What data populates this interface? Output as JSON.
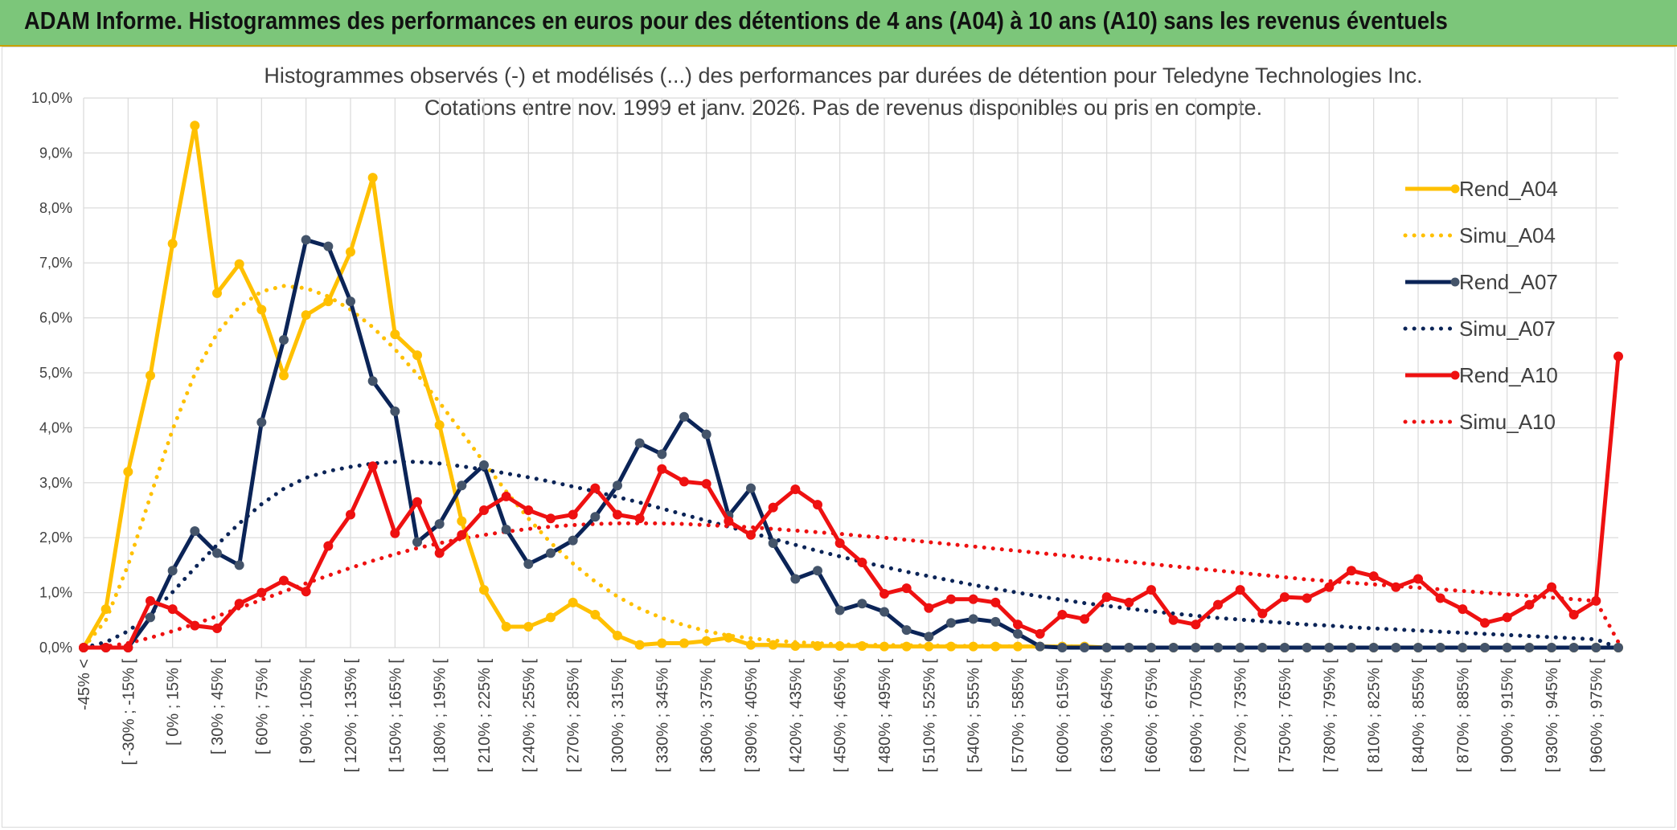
{
  "banner": {
    "title": "ADAM Informe. Histogrammes des performances en euros pour des détentions de 4 ans (A04) à 10 ans (A10) sans les revenus éventuels"
  },
  "chart_data": {
    "type": "line",
    "title": "Histogrammes observés (-) et modélisés (...) des performances par durées de détention pour Teledyne Technologies Inc.",
    "subtitle": "Cotations entre nov. 1999 et janv. 2026. Pas de revenus disponibles ou pris en compte.",
    "xlabel": "",
    "ylabel": "",
    "ylim": [
      0,
      10
    ],
    "y_ticks": [
      "0,0%",
      "1,0%",
      "2,0%",
      "3,0%",
      "4,0%",
      "5,0%",
      "6,0%",
      "7,0%",
      "8,0%",
      "9,0%",
      "10,0%"
    ],
    "x_tick_labels": [
      "-45% <",
      "[ -30% ; -15% [",
      "[ 0% ; 15% [",
      "[ 30% ; 45% [",
      "[ 60% ; 75% [",
      "[ 90% ; 105% [",
      "[ 120% ; 135% [",
      "[ 150% ; 165% [",
      "[ 180% ; 195% [",
      "[ 210% ; 225% [",
      "[ 240% ; 255% [",
      "[ 270% ; 285% [",
      "[ 300% ; 315% [",
      "[ 330% ; 345% [",
      "[ 360% ; 375% [",
      "[ 390% ; 405% [",
      "[ 420% ; 435% [",
      "[ 450% ; 465% [",
      "[ 480% ; 495% [",
      "[ 510% ; 525% [",
      "[ 540% ; 555% [",
      "[ 570% ; 585% [",
      "[ 600% ; 615% [",
      "[ 630% ; 645% [",
      "[ 660% ; 675% [",
      "[ 690% ; 705% [",
      "[ 720% ; 735% [",
      "[ 750% ; 765% [",
      "[ 780% ; 795% [",
      "[ 810% ; 825% [",
      "[ 840% ; 855% [",
      "[ 870% ; 885% [",
      "[ 900% ; 915% [",
      "[ 930% ; 945% [",
      "[ 960% ; 975% ["
    ],
    "grid": true,
    "legend_position": "right",
    "n_points": 70,
    "series": [
      {
        "name": "Rend_A04",
        "style": "solid",
        "marker": true,
        "color": "#ffc000",
        "values": [
          0,
          0.7,
          3.2,
          4.95,
          7.35,
          9.5,
          6.45,
          6.98,
          6.15,
          4.95,
          6.05,
          6.3,
          7.2,
          8.55,
          5.7,
          5.32,
          4.05,
          2.3,
          1.05,
          0.38,
          0.38,
          0.55,
          0.82,
          0.6,
          0.22,
          0.05,
          0.08,
          0.08,
          0.12,
          0.18,
          0.05,
          0.05,
          0.03,
          0.03,
          0.03,
          0.03,
          0.02,
          0.02,
          0.02,
          0.02,
          0.02,
          0.02,
          0.02,
          0.02,
          0.02,
          0.02,
          0,
          0,
          0,
          0,
          0,
          0,
          0,
          0,
          0,
          0,
          0,
          0,
          0,
          0,
          0,
          0,
          0,
          0,
          0,
          0,
          0,
          0,
          0,
          0
        ]
      },
      {
        "name": "Simu_A04",
        "style": "dotted",
        "marker": false,
        "color": "#ffc000",
        "values": [
          0,
          0.5,
          1.5,
          2.75,
          3.97,
          4.98,
          5.72,
          6.2,
          6.48,
          6.58,
          6.54,
          6.39,
          6.15,
          5.83,
          5.43,
          4.97,
          4.46,
          3.92,
          3.37,
          2.84,
          2.35,
          1.91,
          1.53,
          1.2,
          0.93,
          0.71,
          0.54,
          0.41,
          0.3,
          0.22,
          0.17,
          0.13,
          0.1,
          0.08,
          0.06,
          0.05,
          0.05,
          0.04,
          0.04,
          0.03,
          0.03,
          0.03,
          0.02,
          0.02,
          0.02,
          0.02,
          0,
          0,
          0,
          0,
          0,
          0,
          0,
          0,
          0,
          0,
          0,
          0,
          0,
          0,
          0,
          0,
          0,
          0,
          0,
          0,
          0,
          0,
          0,
          0
        ]
      },
      {
        "name": "Rend_A07",
        "style": "solid",
        "marker": true,
        "color": "#0b2457",
        "values": [
          0,
          0,
          0,
          0.55,
          1.4,
          2.12,
          1.72,
          1.5,
          4.1,
          5.6,
          7.42,
          7.3,
          6.3,
          4.85,
          4.3,
          1.92,
          2.25,
          2.95,
          3.32,
          2.15,
          1.52,
          1.72,
          1.95,
          2.38,
          2.95,
          3.72,
          3.52,
          4.2,
          3.88,
          2.4,
          2.9,
          1.9,
          1.25,
          1.4,
          0.68,
          0.8,
          0.65,
          0.32,
          0.2,
          0.45,
          0.52,
          0.47,
          0.25,
          0.02,
          0,
          0,
          0,
          0,
          0,
          0,
          0,
          0,
          0,
          0,
          0,
          0,
          0,
          0,
          0,
          0,
          0,
          0,
          0,
          0,
          0,
          0,
          0,
          0,
          0,
          0
        ]
      },
      {
        "name": "Simu_A07",
        "style": "dotted",
        "marker": false,
        "color": "#0b2457",
        "values": [
          0,
          0.1,
          0.3,
          0.6,
          1.01,
          1.45,
          1.87,
          2.26,
          2.61,
          2.89,
          3.09,
          3.21,
          3.29,
          3.35,
          3.38,
          3.38,
          3.35,
          3.3,
          3.24,
          3.17,
          3.1,
          3.02,
          2.93,
          2.84,
          2.74,
          2.64,
          2.53,
          2.42,
          2.31,
          2.2,
          2.09,
          1.98,
          1.87,
          1.76,
          1.66,
          1.56,
          1.47,
          1.38,
          1.3,
          1.22,
          1.14,
          1.07,
          1.0,
          0.93,
          0.87,
          0.81,
          0.76,
          0.71,
          0.66,
          0.62,
          0.58,
          0.54,
          0.51,
          0.48,
          0.45,
          0.42,
          0.4,
          0.37,
          0.35,
          0.33,
          0.31,
          0.29,
          0.27,
          0.25,
          0.23,
          0.21,
          0.19,
          0.17,
          0.15,
          0
        ]
      },
      {
        "name": "Rend_A10",
        "style": "solid",
        "marker": true,
        "color": "#ee1111",
        "values": [
          0,
          0,
          0,
          0.85,
          0.7,
          0.4,
          0.35,
          0.8,
          1.0,
          1.22,
          1.02,
          1.85,
          2.42,
          3.3,
          2.08,
          2.65,
          1.72,
          2.05,
          2.5,
          2.75,
          2.5,
          2.35,
          2.42,
          2.9,
          2.42,
          2.35,
          3.25,
          3.02,
          2.98,
          2.3,
          2.05,
          2.55,
          2.88,
          2.6,
          1.9,
          1.55,
          0.98,
          1.08,
          0.72,
          0.88,
          0.88,
          0.82,
          0.42,
          0.25,
          0.6,
          0.52,
          0.92,
          0.82,
          1.05,
          0.5,
          0.42,
          0.78,
          1.05,
          0.62,
          0.92,
          0.9,
          1.1,
          1.4,
          1.3,
          1.1,
          1.25,
          0.9,
          0.7,
          0.45,
          0.55,
          0.78,
          1.1,
          0.6,
          0.85,
          5.3
        ]
      },
      {
        "name": "Simu_A10",
        "style": "dotted",
        "marker": false,
        "color": "#ee1111",
        "values": [
          0,
          0.02,
          0.08,
          0.18,
          0.3,
          0.43,
          0.57,
          0.72,
          0.87,
          1.02,
          1.17,
          1.31,
          1.45,
          1.58,
          1.7,
          1.81,
          1.9,
          1.98,
          2.05,
          2.11,
          2.16,
          2.2,
          2.23,
          2.25,
          2.26,
          2.26,
          2.26,
          2.25,
          2.23,
          2.21,
          2.19,
          2.16,
          2.13,
          2.1,
          2.07,
          2.03,
          2.0,
          1.96,
          1.92,
          1.88,
          1.84,
          1.8,
          1.76,
          1.72,
          1.68,
          1.64,
          1.6,
          1.56,
          1.52,
          1.48,
          1.44,
          1.4,
          1.36,
          1.32,
          1.28,
          1.24,
          1.21,
          1.18,
          1.15,
          1.12,
          1.09,
          1.06,
          1.03,
          1.0,
          0.97,
          0.94,
          0.91,
          0.88,
          0.85,
          0.1
        ]
      }
    ]
  }
}
